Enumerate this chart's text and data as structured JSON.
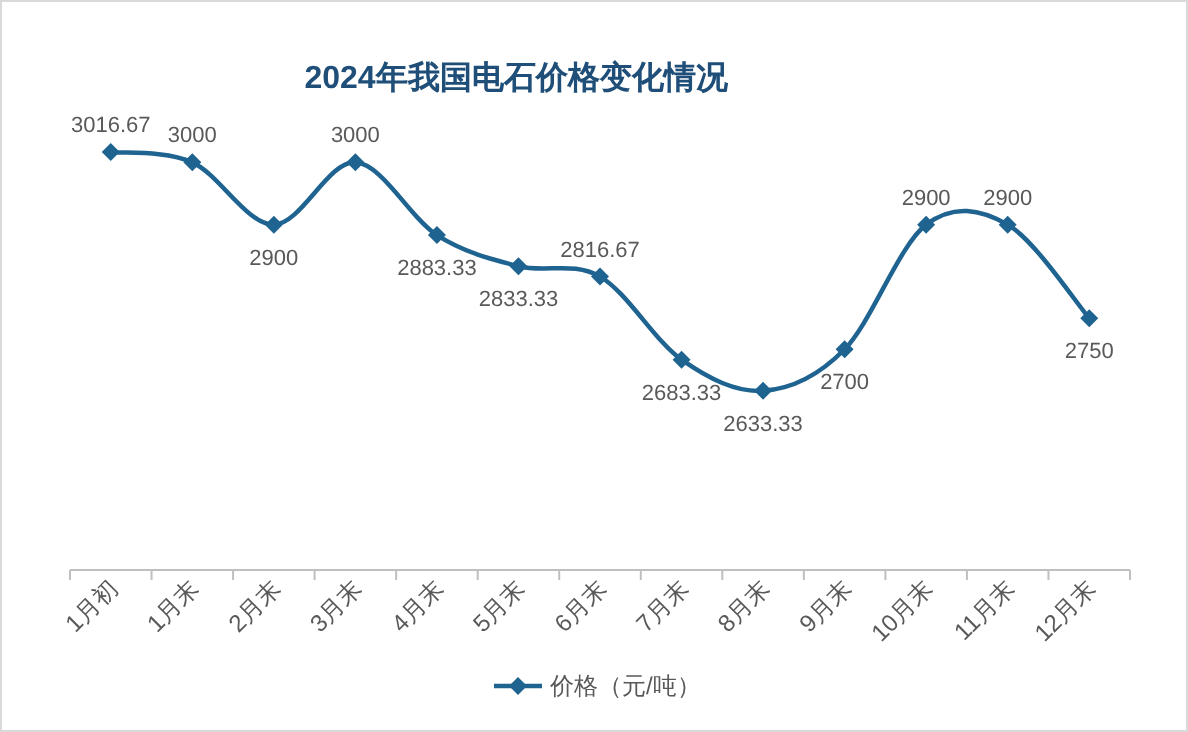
{
  "chart_data": {
    "type": "line",
    "title": "2024年我国电石价格变化情况",
    "categories": [
      "1月初",
      "1月末",
      "2月末",
      "3月末",
      "4月末",
      "5月末",
      "6月末",
      "7月末",
      "8月末",
      "9月末",
      "10月末",
      "11月末",
      "12月末"
    ],
    "series": [
      {
        "name": "价格（元/吨）",
        "color": "#1f6391",
        "values": [
          3016.67,
          3000,
          2900,
          3000,
          2883.33,
          2833.33,
          2816.67,
          2683.33,
          2633.33,
          2700,
          2900,
          2900,
          2750
        ]
      }
    ],
    "data_labels": true,
    "marker": "diamond",
    "line_style": "solid",
    "legend": "bottom",
    "grid": false,
    "tick_labels": "x"
  }
}
